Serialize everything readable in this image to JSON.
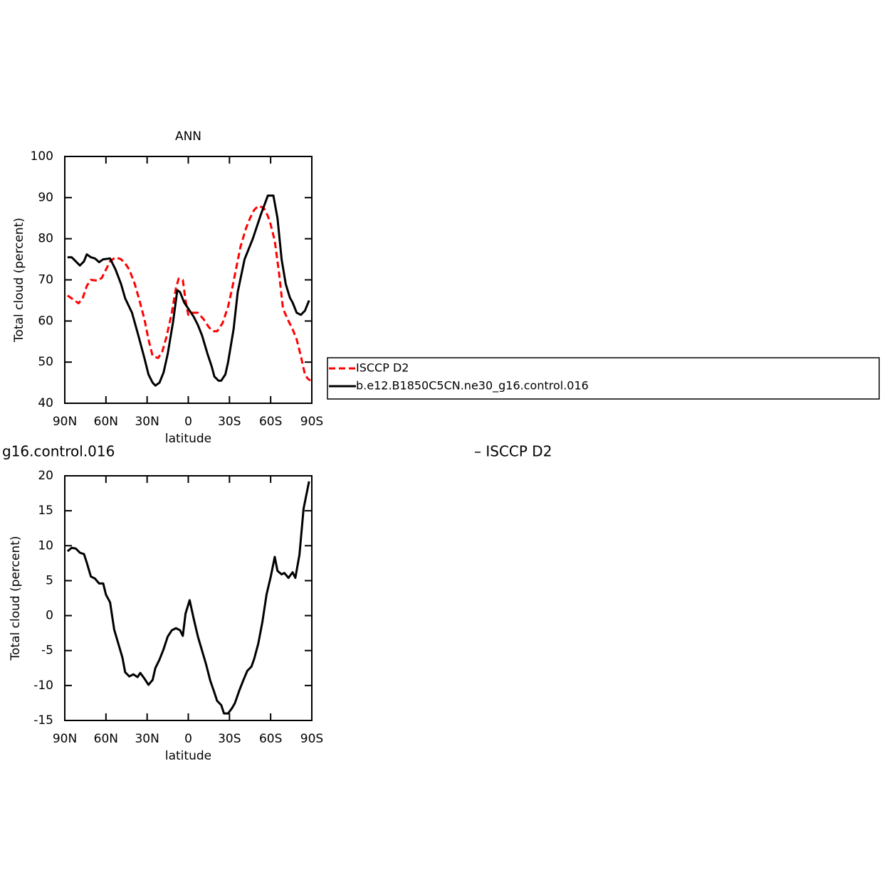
{
  "chart_data": [
    {
      "type": "line",
      "title": "ANN",
      "xlabel": "latitude",
      "ylabel": "Total cloud (percent)",
      "xlim": [
        90,
        -90
      ],
      "xticks": [
        {
          "value": 90,
          "label": "90N"
        },
        {
          "value": 60,
          "label": "60N"
        },
        {
          "value": 30,
          "label": "30N"
        },
        0,
        {
          "value": -30,
          "label": "30S"
        },
        {
          "value": -60,
          "label": "60S"
        },
        {
          "value": -90,
          "label": "90S"
        }
      ],
      "ylim": [
        40,
        100
      ],
      "yticks": [
        40,
        50,
        60,
        70,
        80,
        90,
        100
      ],
      "legend": "right",
      "series": [
        {
          "name": "ISCCP D2",
          "color": "#ff0000",
          "dash": true,
          "x": [
            88,
            85,
            80,
            77,
            74,
            71,
            66,
            63,
            60,
            57,
            53,
            49,
            46,
            43,
            39,
            36,
            32,
            29,
            26,
            22,
            19,
            16,
            12,
            9,
            7,
            4,
            2,
            0,
            -3,
            -7,
            -11,
            -15,
            -18,
            -21,
            -25,
            -29,
            -32,
            -35,
            -38,
            -42,
            -45,
            -48,
            -51,
            -55,
            -58,
            -60,
            -63,
            -66,
            -69,
            -73,
            -76,
            -79,
            -82,
            -85,
            -87,
            -89
          ],
          "values": [
            66.2,
            65.5,
            64.3,
            65.5,
            68.5,
            70,
            69.8,
            70.5,
            72.5,
            74.5,
            75.5,
            75,
            74,
            72.5,
            69,
            65.5,
            60.5,
            55.5,
            51.5,
            51,
            52.5,
            56,
            62,
            68,
            70.3,
            70,
            65,
            61.5,
            62,
            62,
            60.5,
            58.5,
            57.5,
            57.5,
            59.5,
            63.5,
            68,
            73,
            78,
            82.5,
            85,
            87,
            88,
            87.5,
            85.5,
            83.5,
            79.5,
            72,
            63,
            60,
            58,
            55.5,
            51.5,
            47,
            46,
            45.5
          ]
        },
        {
          "name": "b.e12.B1850C5CN.ne30_g16.control.016",
          "color": "#000000",
          "dash": false,
          "x": [
            88,
            85,
            82,
            79,
            76,
            74,
            71,
            68,
            65,
            62,
            57,
            53,
            49,
            46,
            41,
            36,
            32,
            29,
            26,
            24,
            21,
            18,
            15,
            11,
            8,
            6,
            3,
            0,
            -4,
            -7,
            -10,
            -14,
            -17,
            -19,
            -22,
            -24,
            -27,
            -29,
            -33,
            -36,
            -41,
            -47,
            -53,
            -58,
            -62,
            -65,
            -68,
            -71,
            -74,
            -76,
            -79,
            -82,
            -85,
            -88
          ],
          "values": [
            75.5,
            75.5,
            74.5,
            73.5,
            74.5,
            76.2,
            75.5,
            75.2,
            74.3,
            75,
            75.2,
            72.5,
            69,
            65.5,
            62,
            56,
            51,
            47,
            45,
            44.3,
            45,
            47.5,
            52,
            60,
            67.5,
            67,
            64.5,
            63,
            61,
            59,
            56.5,
            52,
            49,
            46.5,
            45.5,
            45.5,
            47,
            50,
            58,
            67,
            75,
            80,
            86,
            90.5,
            90.5,
            85,
            75,
            69,
            65.7,
            64.5,
            62,
            61.5,
            62.5,
            65
          ]
        }
      ]
    },
    {
      "type": "line",
      "title_parts": [
        "g16.control.016",
        "– ISCCP D2"
      ],
      "xlabel": "latitude",
      "ylabel": "Total cloud (percent)",
      "xlim": [
        90,
        -90
      ],
      "xticks": [
        {
          "value": 90,
          "label": "90N"
        },
        {
          "value": 60,
          "label": "60N"
        },
        {
          "value": 30,
          "label": "30N"
        },
        0,
        {
          "value": -30,
          "label": "30S"
        },
        {
          "value": -60,
          "label": "60S"
        },
        {
          "value": -90,
          "label": "90S"
        }
      ],
      "ylim": [
        -15,
        20
      ],
      "yticks": [
        -15,
        -10,
        -5,
        0,
        5,
        10,
        15,
        20
      ],
      "series": [
        {
          "color": "#000000",
          "dash": false,
          "x": [
            88,
            85,
            82,
            79,
            76,
            74,
            71,
            68,
            65,
            62,
            60,
            57,
            54,
            51,
            48,
            46,
            43,
            40,
            37,
            35,
            32,
            29,
            26,
            24,
            21,
            18,
            15,
            12,
            9,
            6,
            4,
            2,
            -1,
            -4,
            -7,
            -10,
            -13,
            -16,
            -19,
            -21,
            -24,
            -26,
            -29,
            -32,
            -34,
            -37,
            -40,
            -43,
            -46,
            -48,
            -51,
            -54,
            -57,
            -60,
            -63,
            -65,
            -68,
            -70,
            -73,
            -76,
            -78,
            -81,
            -84,
            -88
          ],
          "values": [
            9.2,
            9.7,
            9.6,
            9.0,
            8.8,
            7.6,
            5.6,
            5.3,
            4.6,
            4.6,
            3.0,
            1.9,
            -2,
            -4,
            -6,
            -8.1,
            -8.7,
            -8.4,
            -8.8,
            -8.2,
            -9,
            -9.9,
            -9.2,
            -7.5,
            -6.3,
            -4.8,
            -3.0,
            -2.1,
            -1.8,
            -2.1,
            -2.9,
            0.3,
            2.2,
            -0.5,
            -3,
            -5,
            -7,
            -9.3,
            -11,
            -12.2,
            -12.8,
            -14,
            -14,
            -13.2,
            -12.5,
            -10.8,
            -9.3,
            -7.9,
            -7.3,
            -6.2,
            -4,
            -0.9,
            3,
            5.5,
            8.4,
            6.4,
            5.9,
            6.1,
            5.4,
            6.2,
            5.4,
            8.7,
            15.3,
            19.2
          ]
        }
      ]
    }
  ]
}
